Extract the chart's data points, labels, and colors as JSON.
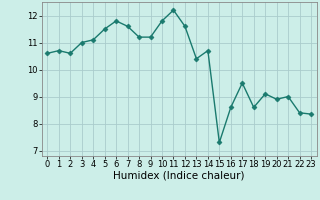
{
  "x": [
    0,
    1,
    2,
    3,
    4,
    5,
    6,
    7,
    8,
    9,
    10,
    11,
    12,
    13,
    14,
    15,
    16,
    17,
    18,
    19,
    20,
    21,
    22,
    23
  ],
  "y": [
    10.6,
    10.7,
    10.6,
    11.0,
    11.1,
    11.5,
    11.8,
    11.6,
    11.2,
    11.2,
    11.8,
    12.2,
    11.6,
    10.4,
    10.7,
    7.3,
    8.6,
    9.5,
    8.6,
    9.1,
    8.9,
    9.0,
    8.4,
    8.35
  ],
  "line_color": "#1a7a6e",
  "marker": "D",
  "marker_size": 2.5,
  "bg_color": "#cceee8",
  "grid_color": "#aacccc",
  "xlabel": "Humidex (Indice chaleur)",
  "xlim": [
    -0.5,
    23.5
  ],
  "ylim": [
    6.8,
    12.5
  ],
  "yticks": [
    7,
    8,
    9,
    10,
    11,
    12
  ],
  "xticks": [
    0,
    1,
    2,
    3,
    4,
    5,
    6,
    7,
    8,
    9,
    10,
    11,
    12,
    13,
    14,
    15,
    16,
    17,
    18,
    19,
    20,
    21,
    22,
    23
  ],
  "tick_fontsize": 6,
  "xlabel_fontsize": 7.5,
  "line_width": 1.0
}
